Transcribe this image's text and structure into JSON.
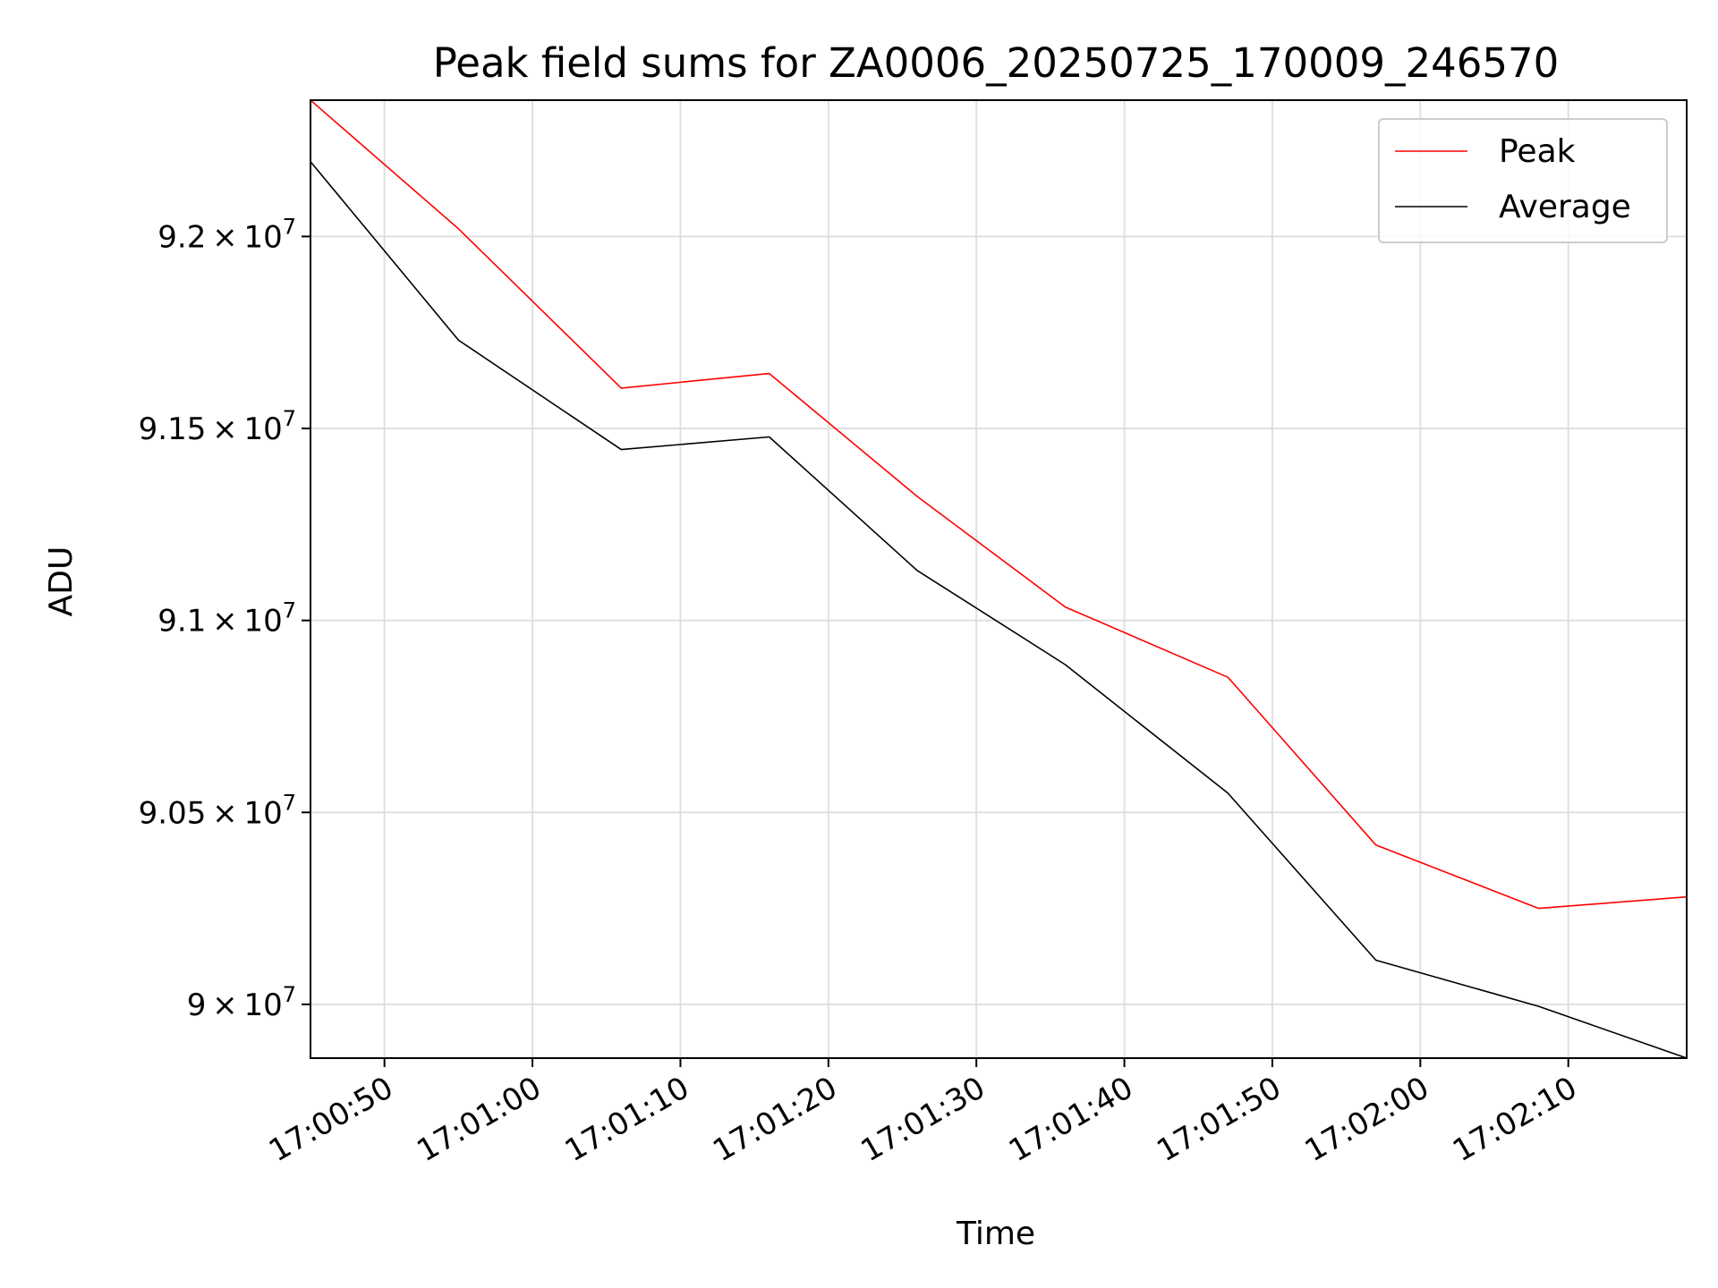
{
  "chart_data": {
    "type": "line",
    "title": "Peak field sums for ZA0006_20250725_170009_246570",
    "xlabel": "Time",
    "ylabel": "ADU",
    "x": [
      "17:00:45",
      "17:00:55",
      "17:01:06",
      "17:01:16",
      "17:01:26",
      "17:01:36",
      "17:01:47",
      "17:01:57",
      "17:02:08",
      "17:02:18"
    ],
    "xlim": [
      "17:00:45",
      "17:02:18"
    ],
    "x_ticks": [
      "17:00:50",
      "17:01:00",
      "17:01:10",
      "17:01:20",
      "17:01:30",
      "17:01:40",
      "17:01:50",
      "17:02:00",
      "17:02:10"
    ],
    "ylim": [
      89860000,
      92355000
    ],
    "y_ticks": [
      {
        "value": 90000000,
        "mantissa": "9",
        "exponent": "7"
      },
      {
        "value": 90500000,
        "mantissa": "9.05",
        "exponent": "7"
      },
      {
        "value": 91000000,
        "mantissa": "9.1",
        "exponent": "7"
      },
      {
        "value": 91500000,
        "mantissa": "9.15",
        "exponent": "7"
      },
      {
        "value": 92000000,
        "mantissa": "9.2",
        "exponent": "7"
      }
    ],
    "series": [
      {
        "name": "Peak",
        "color": "#ff0000",
        "values": [
          92355000,
          92020000,
          91605000,
          91643000,
          91323000,
          91035000,
          90852000,
          90415000,
          90250000,
          90280000
        ]
      },
      {
        "name": "Average",
        "color": "#000000",
        "values": [
          92195000,
          91730000,
          91445000,
          91478000,
          91130000,
          90885000,
          90550000,
          90115000,
          89995000,
          89860000
        ]
      }
    ],
    "grid": true,
    "legend_position": "top-right"
  }
}
